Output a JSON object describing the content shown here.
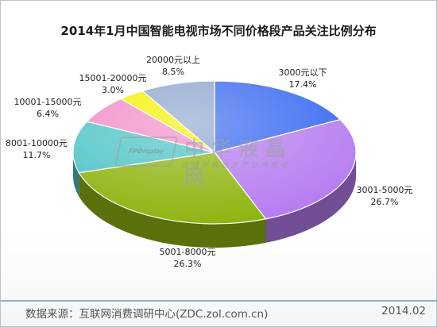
{
  "chart_data": {
    "type": "pie",
    "title": "2014年1月中国智能电视市场不同价格段产品关注比例分布",
    "categories": [
      "3000元以下",
      "3001-5000元",
      "5001-8000元",
      "8001-10000元",
      "10001-15000元",
      "15001-20000元",
      "20000元以上"
    ],
    "values": [
      17.4,
      26.7,
      26.3,
      11.7,
      6.4,
      3.0,
      8.5
    ],
    "value_labels": [
      "17.4%",
      "26.7%",
      "26.3%",
      "11.7%",
      "6.4%",
      "3.0%",
      "8.5%"
    ],
    "colors": [
      "#3b6bf0",
      "#b77ef0",
      "#8fb512",
      "#4fc4c6",
      "#f28bc6",
      "#f5f000",
      "#8fa6cf"
    ],
    "style": "3d"
  },
  "watermark": {
    "logo": "FPDisplay",
    "name": "中华液晶网",
    "tagline": "全球平板显示产业领航者"
  },
  "footer": {
    "source": "数据来源：互联网消费调研中心(ZDC.zol.com.cn)",
    "date": "2014.02"
  }
}
